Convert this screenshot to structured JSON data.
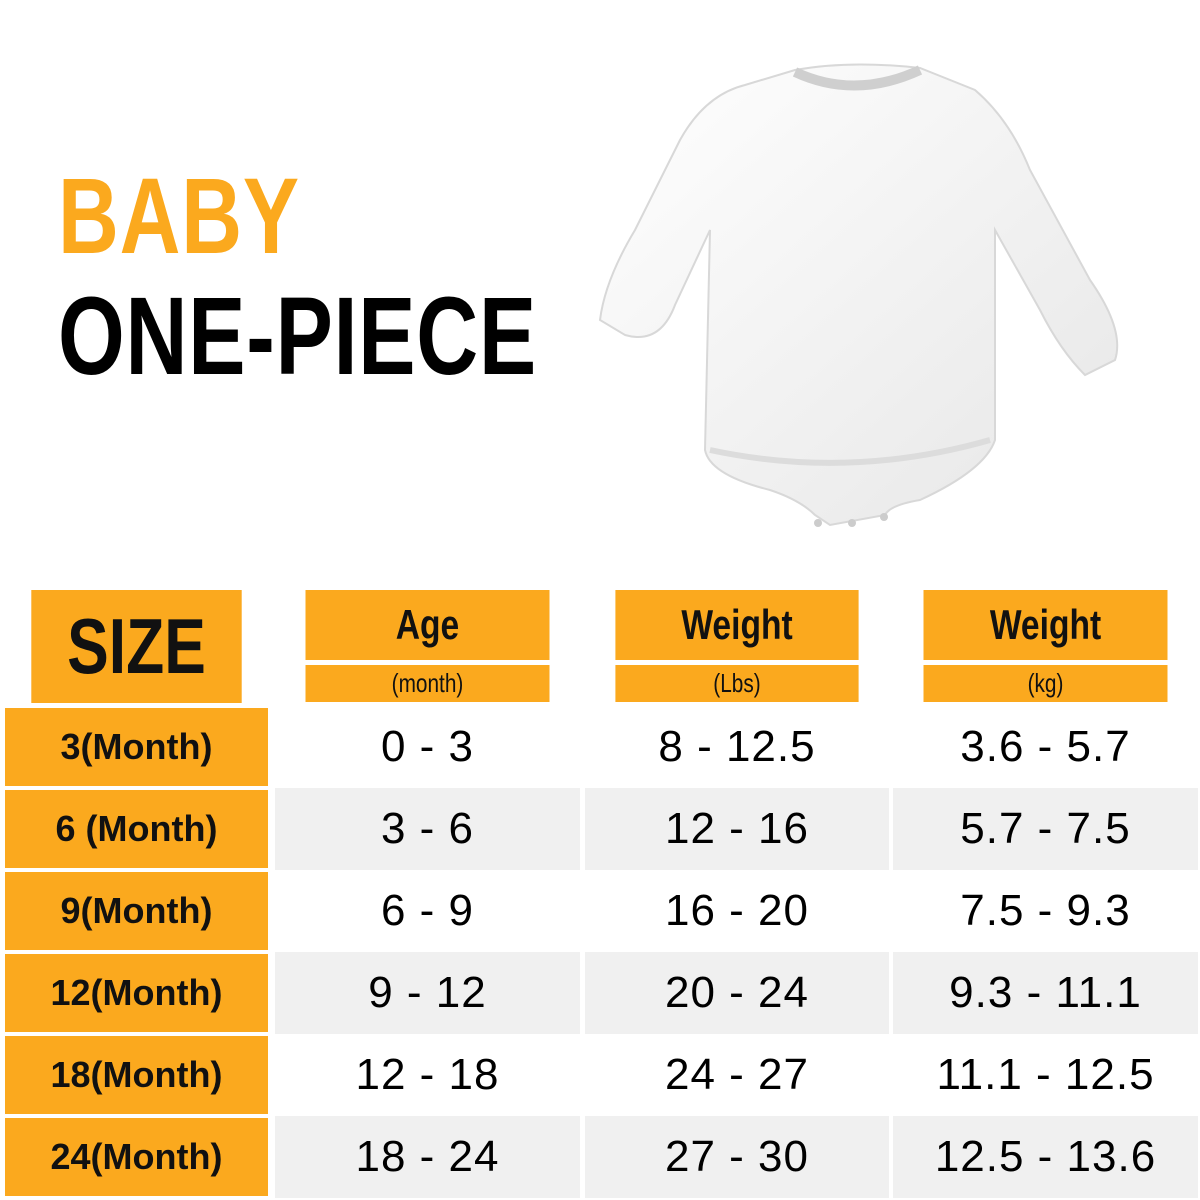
{
  "colors": {
    "accent": "#FBA91E",
    "row_alt": "#F0F0F0"
  },
  "title": {
    "line1": "BABY",
    "line2": "ONE-PIECE"
  },
  "product_image": "white long-sleeve baby bodysuit",
  "table": {
    "size_header": "SIZE",
    "columns": [
      {
        "label": "Age",
        "unit": "(month)"
      },
      {
        "label": "Weight",
        "unit": "(Lbs)"
      },
      {
        "label": "Weight",
        "unit": "(kg)"
      }
    ],
    "rows": [
      {
        "size": "3(Month)",
        "age": "0 - 3",
        "lbs": "8 - 12.5",
        "kg": "3.6 - 5.7"
      },
      {
        "size": "6 (Month)",
        "age": "3 - 6",
        "lbs": "12 - 16",
        "kg": "5.7 - 7.5"
      },
      {
        "size": "9(Month)",
        "age": "6 - 9",
        "lbs": "16 - 20",
        "kg": "7.5 - 9.3"
      },
      {
        "size": "12(Month)",
        "age": "9 - 12",
        "lbs": "20 - 24",
        "kg": "9.3 - 11.1"
      },
      {
        "size": "18(Month)",
        "age": "12 - 18",
        "lbs": "24 - 27",
        "kg": "11.1 - 12.5"
      },
      {
        "size": "24(Month)",
        "age": "18 - 24",
        "lbs": "27 - 30",
        "kg": "12.5 - 13.6"
      }
    ]
  }
}
